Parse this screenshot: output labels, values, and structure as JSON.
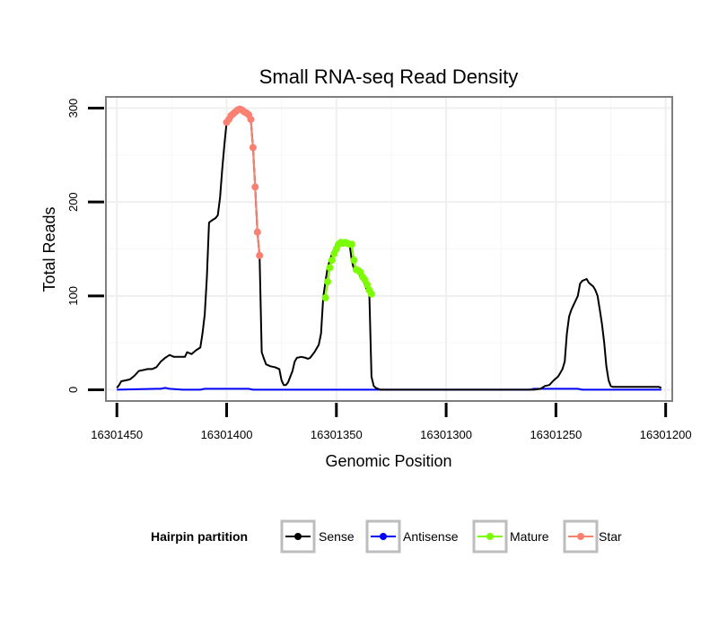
{
  "chart_data": {
    "type": "line",
    "title": "Small RNA-seq Read Density",
    "xlabel": "Genomic Position",
    "ylabel": "Total Reads",
    "x_reversed": true,
    "xlim": [
      16301455,
      16301197
    ],
    "ylim": [
      -12,
      312
    ],
    "x_ticks": [
      16301450,
      16301400,
      16301350,
      16301300,
      16301250,
      16301200
    ],
    "x_tick_labels": [
      "16301450",
      "16301400",
      "16301350",
      "16301300",
      "16301250",
      "16301200"
    ],
    "y_ticks": [
      0,
      100,
      200,
      300
    ],
    "y_tick_labels": [
      "0",
      "100",
      "200",
      "300"
    ],
    "legend": {
      "title": "Hairpin partition",
      "position": "bottom",
      "entries": [
        {
          "label": "Sense",
          "color": "#000000"
        },
        {
          "label": "Antisense",
          "color": "#0000ff"
        },
        {
          "label": "Mature",
          "color": "#7cfc00"
        },
        {
          "label": "Star",
          "color": "#fa8072"
        }
      ]
    },
    "series": [
      {
        "name": "Sense",
        "color": "#000000",
        "points": [
          [
            16301450,
            2
          ],
          [
            16301449,
            5
          ],
          [
            16301448,
            9
          ],
          [
            16301446,
            10
          ],
          [
            16301444,
            11
          ],
          [
            16301442,
            15
          ],
          [
            16301440,
            20
          ],
          [
            16301438,
            21
          ],
          [
            16301436,
            22
          ],
          [
            16301434,
            22
          ],
          [
            16301432,
            24
          ],
          [
            16301430,
            30
          ],
          [
            16301428,
            34
          ],
          [
            16301426,
            37
          ],
          [
            16301424,
            35
          ],
          [
            16301421,
            35
          ],
          [
            16301419,
            35
          ],
          [
            16301418,
            40
          ],
          [
            16301416,
            38
          ],
          [
            16301414,
            42
          ],
          [
            16301412,
            45
          ],
          [
            16301411,
            60
          ],
          [
            16301410,
            80
          ],
          [
            16301409,
            120
          ],
          [
            16301408,
            178
          ],
          [
            16301407,
            180
          ],
          [
            16301405,
            183
          ],
          [
            16301404,
            186
          ],
          [
            16301403,
            205
          ],
          [
            16301402,
            235
          ],
          [
            16301401,
            262
          ],
          [
            16301400,
            285
          ],
          [
            16301399,
            288
          ],
          [
            16301398,
            292
          ],
          [
            16301397,
            294
          ],
          [
            16301396,
            296
          ],
          [
            16301395,
            298
          ],
          [
            16301394,
            299
          ],
          [
            16301393,
            298
          ],
          [
            16301392,
            296
          ],
          [
            16301391,
            295
          ],
          [
            16301390,
            293
          ],
          [
            16301389,
            288
          ],
          [
            16301388,
            258
          ],
          [
            16301387,
            216
          ],
          [
            16301386,
            168
          ],
          [
            16301385,
            143
          ],
          [
            16301384,
            40
          ],
          [
            16301383,
            33
          ],
          [
            16301382,
            27
          ],
          [
            16301380,
            25
          ],
          [
            16301378,
            24
          ],
          [
            16301376,
            22
          ],
          [
            16301375,
            10
          ],
          [
            16301374,
            5
          ],
          [
            16301373,
            5
          ],
          [
            16301372,
            8
          ],
          [
            16301370,
            20
          ],
          [
            16301369,
            30
          ],
          [
            16301368,
            34
          ],
          [
            16301366,
            35
          ],
          [
            16301364,
            34
          ],
          [
            16301363,
            33
          ],
          [
            16301362,
            34
          ],
          [
            16301360,
            40
          ],
          [
            16301358,
            48
          ],
          [
            16301357,
            60
          ],
          [
            16301356,
            98
          ],
          [
            16301355,
            115
          ],
          [
            16301354,
            130
          ],
          [
            16301353,
            138
          ],
          [
            16301352,
            145
          ],
          [
            16301351,
            150
          ],
          [
            16301350,
            155
          ],
          [
            16301349,
            157
          ],
          [
            16301348,
            156
          ],
          [
            16301347,
            157
          ],
          [
            16301346,
            156
          ],
          [
            16301345,
            155
          ],
          [
            16301344,
            155
          ],
          [
            16301343,
            138
          ],
          [
            16301342,
            128
          ],
          [
            16301341,
            127
          ],
          [
            16301340,
            125
          ],
          [
            16301339,
            120
          ],
          [
            16301338,
            117
          ],
          [
            16301337,
            112
          ],
          [
            16301336,
            106
          ],
          [
            16301335,
            102
          ],
          [
            16301334,
            14
          ],
          [
            16301333,
            4
          ],
          [
            16301332,
            2
          ],
          [
            16301331,
            1
          ],
          [
            16301330,
            0
          ],
          [
            16301300,
            0
          ],
          [
            16301260,
            0
          ],
          [
            16301257,
            1
          ],
          [
            16301255,
            4
          ],
          [
            16301253,
            5
          ],
          [
            16301251,
            10
          ],
          [
            16301249,
            14
          ],
          [
            16301248,
            18
          ],
          [
            16301247,
            22
          ],
          [
            16301246,
            30
          ],
          [
            16301245,
            60
          ],
          [
            16301244,
            78
          ],
          [
            16301243,
            85
          ],
          [
            16301242,
            90
          ],
          [
            16301241,
            95
          ],
          [
            16301240,
            100
          ],
          [
            16301239,
            113
          ],
          [
            16301238,
            116
          ],
          [
            16301237,
            117
          ],
          [
            16301236,
            118
          ],
          [
            16301235,
            114
          ],
          [
            16301234,
            112
          ],
          [
            16301233,
            110
          ],
          [
            16301232,
            106
          ],
          [
            16301231,
            100
          ],
          [
            16301230,
            85
          ],
          [
            16301229,
            70
          ],
          [
            16301228,
            50
          ],
          [
            16301227,
            25
          ],
          [
            16301226,
            10
          ],
          [
            16301225,
            4
          ],
          [
            16301224,
            3
          ],
          [
            16301203,
            3
          ],
          [
            16301202,
            2
          ]
        ]
      },
      {
        "name": "Antisense",
        "color": "#0000ff",
        "points": [
          [
            16301450,
            0
          ],
          [
            16301432,
            1
          ],
          [
            16301430,
            1
          ],
          [
            16301428,
            2
          ],
          [
            16301426,
            1
          ],
          [
            16301420,
            0
          ],
          [
            16301412,
            0
          ],
          [
            16301410,
            1
          ],
          [
            16301390,
            1
          ],
          [
            16301388,
            0
          ],
          [
            16301300,
            0
          ],
          [
            16301262,
            0
          ],
          [
            16301260,
            1
          ],
          [
            16301240,
            1
          ],
          [
            16301238,
            0
          ],
          [
            16301202,
            0
          ]
        ]
      },
      {
        "name": "Mature",
        "color": "#7cfc00",
        "points": [
          [
            16301355,
            98
          ],
          [
            16301354,
            115
          ],
          [
            16301353,
            130
          ],
          [
            16301352,
            138
          ],
          [
            16301351,
            145
          ],
          [
            16301350,
            150
          ],
          [
            16301349,
            155
          ],
          [
            16301348,
            157
          ],
          [
            16301347,
            156
          ],
          [
            16301346,
            157
          ],
          [
            16301345,
            156
          ],
          [
            16301344,
            155
          ],
          [
            16301343,
            155
          ],
          [
            16301342,
            138
          ],
          [
            16301341,
            128
          ],
          [
            16301340,
            127
          ],
          [
            16301339,
            125
          ],
          [
            16301338,
            120
          ],
          [
            16301337,
            117
          ],
          [
            16301336,
            112
          ],
          [
            16301335,
            106
          ],
          [
            16301334,
            102
          ]
        ]
      },
      {
        "name": "Star",
        "color": "#fa8072",
        "points": [
          [
            16301400,
            285
          ],
          [
            16301399,
            288
          ],
          [
            16301398,
            292
          ],
          [
            16301397,
            294
          ],
          [
            16301396,
            296
          ],
          [
            16301395,
            298
          ],
          [
            16301394,
            299
          ],
          [
            16301393,
            298
          ],
          [
            16301392,
            296
          ],
          [
            16301391,
            295
          ],
          [
            16301390,
            293
          ],
          [
            16301389,
            288
          ],
          [
            16301388,
            258
          ],
          [
            16301387,
            216
          ],
          [
            16301386,
            168
          ],
          [
            16301385,
            143
          ]
        ]
      }
    ]
  }
}
